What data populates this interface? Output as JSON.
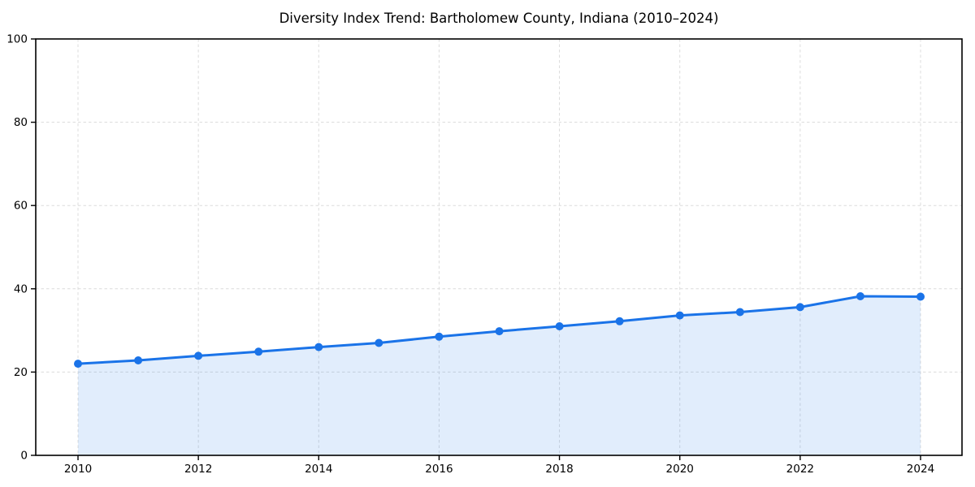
{
  "chart_data": {
    "type": "line",
    "title": "Diversity Index Trend: Bartholomew County, Indiana (2010–2024)",
    "xlabel": "",
    "ylabel": "",
    "x": [
      2010,
      2011,
      2012,
      2013,
      2014,
      2015,
      2016,
      2017,
      2018,
      2019,
      2020,
      2021,
      2022,
      2023,
      2024
    ],
    "series": [
      {
        "name": "Diversity Index",
        "values": [
          22.0,
          22.8,
          23.9,
          24.9,
          26.0,
          27.0,
          28.5,
          29.8,
          31.0,
          32.2,
          33.6,
          34.4,
          35.6,
          38.2,
          38.1
        ]
      }
    ],
    "ylim": [
      0,
      100
    ],
    "yticks": [
      0,
      20,
      40,
      60,
      80,
      100
    ],
    "xticks": [
      2010,
      2012,
      2014,
      2016,
      2018,
      2020,
      2022,
      2024
    ],
    "grid": true,
    "grid_style": "dashed",
    "legend_position": "none",
    "marker": "circle",
    "area_fill": true,
    "colors": {
      "line": "#1a73e8",
      "marker": "#1a73e8",
      "fill": "rgba(26,115,232,0.13)",
      "grid": "#dcdcdc",
      "axis": "#000000",
      "text": "#000000",
      "background": "#ffffff"
    }
  }
}
